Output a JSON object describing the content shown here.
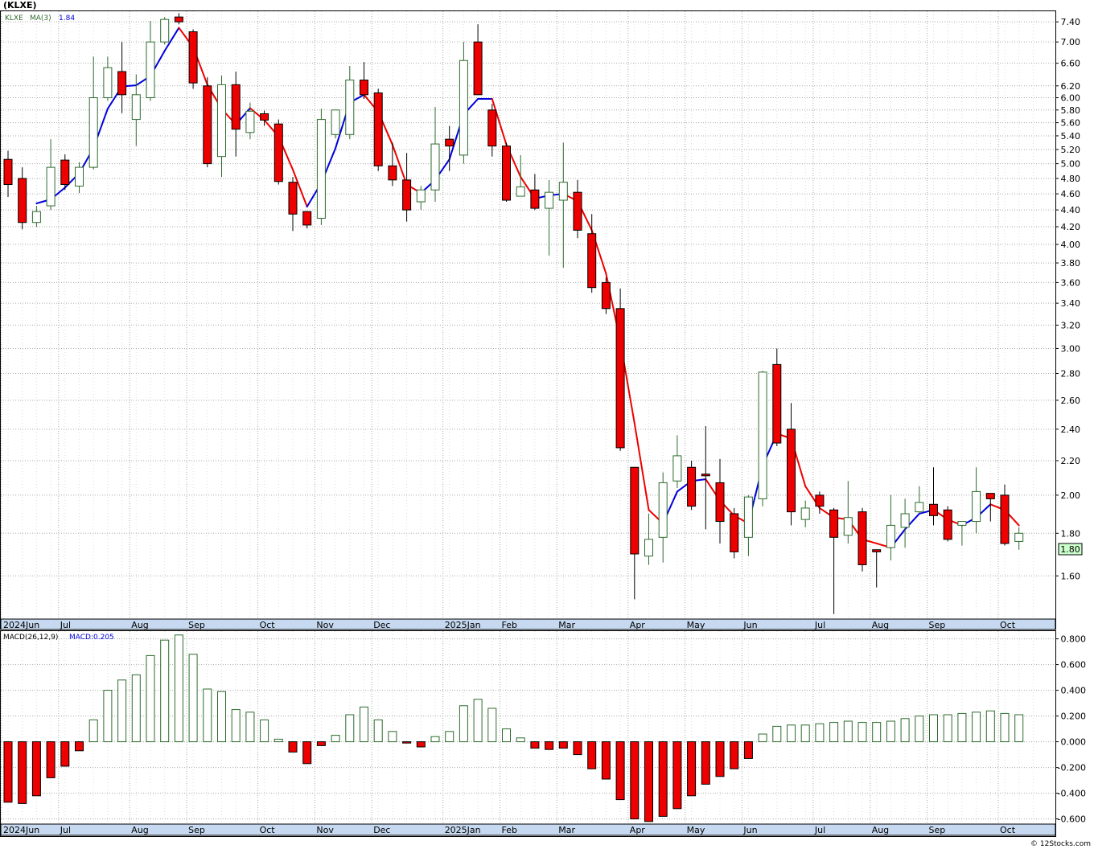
{
  "title": "(KLXE)",
  "copyright": "© 12Stocks.com",
  "colors": {
    "up": "#2e6b2e",
    "down": "#ee0000",
    "ma_up": "#0000dd",
    "ma_down": "#ee0000",
    "grid": "#aaaaaa",
    "axis_band": "#c6d9f0",
    "last_price_bg": "#ccffcc"
  },
  "chart_data": [
    {
      "type": "candlestick",
      "name": "price",
      "legend": {
        "symbol": "KLXE",
        "ma_label": "MA(3)",
        "ma_value": "1.84"
      },
      "scale": "log",
      "ylim": [
        1.42,
        7.62
      ],
      "y_ticks": [
        7.4,
        7.0,
        6.6,
        6.2,
        6.0,
        5.8,
        5.6,
        5.4,
        5.2,
        5.0,
        4.8,
        4.6,
        4.4,
        4.2,
        4.0,
        3.8,
        3.6,
        3.4,
        3.2,
        3.0,
        2.8,
        2.6,
        2.4,
        2.2,
        2.0,
        1.8,
        1.6
      ],
      "y_tick_labels": [
        "7.40",
        "7.00",
        "6.60",
        "6.20",
        "6.00",
        "5.80",
        "5.60",
        "5.40",
        "5.20",
        "5.00",
        "4.80",
        "4.60",
        "4.40",
        "4.20",
        "4.00",
        "3.80",
        "3.60",
        "3.40",
        "3.20",
        "3.00",
        "2.80",
        "2.60",
        "2.40",
        "2.20",
        "2.00",
        "1.80",
        "1.60"
      ],
      "last_price_label": "1.80",
      "x_labels": [
        {
          "label": "2024Jun",
          "index": 0
        },
        {
          "label": "Jul",
          "index": 4
        },
        {
          "label": "Aug",
          "index": 9
        },
        {
          "label": "Sep",
          "index": 13
        },
        {
          "label": "Oct",
          "index": 18
        },
        {
          "label": "Nov",
          "index": 22
        },
        {
          "label": "Dec",
          "index": 26
        },
        {
          "label": "2025Jan",
          "index": 31
        },
        {
          "label": "Feb",
          "index": 35
        },
        {
          "label": "Mar",
          "index": 39
        },
        {
          "label": "Apr",
          "index": 44
        },
        {
          "label": "May",
          "index": 48
        },
        {
          "label": "Jun",
          "index": 52
        },
        {
          "label": "Jul",
          "index": 57
        },
        {
          "label": "Aug",
          "index": 61
        },
        {
          "label": "Sep",
          "index": 65
        },
        {
          "label": "Oct",
          "index": 70
        }
      ],
      "candles": [
        {
          "o": 5.06,
          "h": 5.18,
          "l": 4.56,
          "c": 4.72
        },
        {
          "o": 4.8,
          "h": 4.95,
          "l": 4.17,
          "c": 4.25
        },
        {
          "o": 4.25,
          "h": 4.45,
          "l": 4.2,
          "c": 4.38
        },
        {
          "o": 4.45,
          "h": 5.35,
          "l": 4.4,
          "c": 4.95
        },
        {
          "o": 5.05,
          "h": 5.13,
          "l": 4.65,
          "c": 4.72
        },
        {
          "o": 4.7,
          "h": 5.02,
          "l": 4.61,
          "c": 4.95
        },
        {
          "o": 4.95,
          "h": 6.72,
          "l": 4.92,
          "c": 6.0
        },
        {
          "o": 6.0,
          "h": 6.72,
          "l": 5.95,
          "c": 6.52
        },
        {
          "o": 6.45,
          "h": 7.0,
          "l": 5.75,
          "c": 6.05
        },
        {
          "o": 5.65,
          "h": 6.4,
          "l": 5.25,
          "c": 6.05
        },
        {
          "o": 6.0,
          "h": 7.42,
          "l": 5.95,
          "c": 7.0
        },
        {
          "o": 7.0,
          "h": 7.5,
          "l": 6.95,
          "c": 7.45
        },
        {
          "o": 7.5,
          "h": 7.58,
          "l": 7.35,
          "c": 7.4
        },
        {
          "o": 7.2,
          "h": 7.25,
          "l": 6.15,
          "c": 6.25
        },
        {
          "o": 6.2,
          "h": 6.35,
          "l": 4.95,
          "c": 5.0
        },
        {
          "o": 5.1,
          "h": 6.38,
          "l": 4.82,
          "c": 6.22
        },
        {
          "o": 6.22,
          "h": 6.45,
          "l": 5.1,
          "c": 5.5
        },
        {
          "o": 5.45,
          "h": 5.92,
          "l": 5.35,
          "c": 5.78
        },
        {
          "o": 5.74,
          "h": 5.79,
          "l": 5.55,
          "c": 5.64
        },
        {
          "o": 5.58,
          "h": 5.65,
          "l": 4.72,
          "c": 4.76
        },
        {
          "o": 4.75,
          "h": 4.82,
          "l": 4.15,
          "c": 4.35
        },
        {
          "o": 4.38,
          "h": 4.38,
          "l": 4.18,
          "c": 4.22
        },
        {
          "o": 4.3,
          "h": 5.82,
          "l": 4.22,
          "c": 5.65
        },
        {
          "o": 5.42,
          "h": 5.78,
          "l": 5.36,
          "c": 5.8
        },
        {
          "o": 5.42,
          "h": 6.55,
          "l": 5.35,
          "c": 6.3
        },
        {
          "o": 6.3,
          "h": 6.62,
          "l": 5.98,
          "c": 6.05
        },
        {
          "o": 6.08,
          "h": 6.15,
          "l": 4.9,
          "c": 4.97
        },
        {
          "o": 4.97,
          "h": 5.3,
          "l": 4.7,
          "c": 4.78
        },
        {
          "o": 4.78,
          "h": 5.15,
          "l": 4.26,
          "c": 4.4
        },
        {
          "o": 4.5,
          "h": 4.7,
          "l": 4.4,
          "c": 4.65
        },
        {
          "o": 4.65,
          "h": 5.85,
          "l": 4.5,
          "c": 5.28
        },
        {
          "o": 5.35,
          "h": 5.55,
          "l": 4.9,
          "c": 5.25
        },
        {
          "o": 5.12,
          "h": 7.0,
          "l": 5.0,
          "c": 6.65
        },
        {
          "o": 7.0,
          "h": 7.35,
          "l": 6.1,
          "c": 6.05
        },
        {
          "o": 5.8,
          "h": 5.9,
          "l": 5.1,
          "c": 5.25
        },
        {
          "o": 5.25,
          "h": 5.3,
          "l": 4.5,
          "c": 4.52
        },
        {
          "o": 4.57,
          "h": 5.12,
          "l": 4.57,
          "c": 4.69
        },
        {
          "o": 4.65,
          "h": 4.86,
          "l": 4.4,
          "c": 4.42
        },
        {
          "o": 4.42,
          "h": 4.78,
          "l": 3.88,
          "c": 4.62
        },
        {
          "o": 4.52,
          "h": 5.3,
          "l": 3.75,
          "c": 4.75
        },
        {
          "o": 4.62,
          "h": 4.78,
          "l": 4.07,
          "c": 4.16
        },
        {
          "o": 4.12,
          "h": 4.35,
          "l": 3.5,
          "c": 3.55
        },
        {
          "o": 3.6,
          "h": 3.65,
          "l": 3.3,
          "c": 3.35
        },
        {
          "o": 3.35,
          "h": 3.54,
          "l": 2.26,
          "c": 2.28
        },
        {
          "o": 2.16,
          "h": 2.16,
          "l": 1.5,
          "c": 1.7
        },
        {
          "o": 1.69,
          "h": 1.9,
          "l": 1.65,
          "c": 1.77
        },
        {
          "o": 1.78,
          "h": 2.13,
          "l": 1.66,
          "c": 2.07
        },
        {
          "o": 2.08,
          "h": 2.36,
          "l": 2.04,
          "c": 2.23
        },
        {
          "o": 2.16,
          "h": 2.2,
          "l": 1.92,
          "c": 1.94
        },
        {
          "o": 2.12,
          "h": 2.42,
          "l": 1.82,
          "c": 2.11
        },
        {
          "o": 2.07,
          "h": 2.21,
          "l": 1.75,
          "c": 1.86
        },
        {
          "o": 1.9,
          "h": 1.93,
          "l": 1.68,
          "c": 1.71
        },
        {
          "o": 1.78,
          "h": 2.0,
          "l": 1.69,
          "c": 1.99
        },
        {
          "o": 1.98,
          "h": 2.82,
          "l": 1.94,
          "c": 2.81
        },
        {
          "o": 2.87,
          "h": 3.0,
          "l": 2.29,
          "c": 2.31
        },
        {
          "o": 2.4,
          "h": 2.58,
          "l": 1.84,
          "c": 1.91
        },
        {
          "o": 1.87,
          "h": 1.97,
          "l": 1.83,
          "c": 1.93
        },
        {
          "o": 2.0,
          "h": 2.02,
          "l": 1.9,
          "c": 1.94
        },
        {
          "o": 1.92,
          "h": 1.93,
          "l": 1.44,
          "c": 1.78
        },
        {
          "o": 1.79,
          "h": 2.08,
          "l": 1.75,
          "c": 1.88
        },
        {
          "o": 1.91,
          "h": 1.93,
          "l": 1.62,
          "c": 1.65
        },
        {
          "o": 1.72,
          "h": 1.72,
          "l": 1.55,
          "c": 1.71
        },
        {
          "o": 1.73,
          "h": 2.0,
          "l": 1.67,
          "c": 1.84
        },
        {
          "o": 1.83,
          "h": 1.98,
          "l": 1.73,
          "c": 1.9
        },
        {
          "o": 1.91,
          "h": 2.05,
          "l": 1.9,
          "c": 1.96
        },
        {
          "o": 1.95,
          "h": 2.16,
          "l": 1.84,
          "c": 1.89
        },
        {
          "o": 1.92,
          "h": 1.94,
          "l": 1.76,
          "c": 1.77
        },
        {
          "o": 1.84,
          "h": 1.86,
          "l": 1.74,
          "c": 1.86
        },
        {
          "o": 1.86,
          "h": 2.16,
          "l": 1.8,
          "c": 2.02
        },
        {
          "o": 2.01,
          "h": 2.01,
          "l": 1.86,
          "c": 1.98
        },
        {
          "o": 2.0,
          "h": 2.06,
          "l": 1.74,
          "c": 1.75
        },
        {
          "o": 1.76,
          "h": 1.83,
          "l": 1.72,
          "c": 1.8
        }
      ],
      "ma3": [
        null,
        null,
        4.48,
        4.53,
        4.68,
        4.87,
        5.22,
        5.82,
        6.19,
        6.21,
        6.37,
        6.83,
        7.28,
        6.9,
        6.22,
        5.82,
        5.57,
        5.83,
        5.64,
        5.39,
        4.92,
        4.44,
        4.74,
        5.22,
        5.92,
        6.05,
        5.77,
        5.27,
        4.72,
        4.61,
        4.78,
        5.06,
        5.73,
        5.98,
        5.98,
        5.27,
        4.82,
        4.54,
        4.58,
        4.6,
        4.51,
        4.16,
        3.69,
        3.06,
        2.44,
        1.92,
        1.85,
        2.02,
        2.08,
        2.09,
        1.97,
        1.89,
        1.85,
        2.17,
        2.37,
        2.34,
        2.05,
        1.93,
        1.88,
        1.87,
        1.77,
        1.75,
        1.73,
        1.82,
        1.9,
        1.92,
        1.87,
        1.84,
        1.88,
        1.95,
        1.92,
        1.84
      ]
    },
    {
      "type": "bar",
      "name": "macd",
      "legend": {
        "label": "MACD(26,12,9)",
        "value_label": "MACD:0.205"
      },
      "ylim": [
        -0.64,
        0.86
      ],
      "y_ticks": [
        0.8,
        0.6,
        0.4,
        0.2,
        0.0,
        -0.2,
        -0.4,
        -0.6
      ],
      "y_tick_labels": [
        "0.800",
        "0.600",
        "0.400",
        "0.200",
        "0.000",
        "-0.200",
        "-0.400",
        "-0.600"
      ],
      "values": [
        -0.47,
        -0.48,
        -0.42,
        -0.28,
        -0.19,
        -0.07,
        0.17,
        0.4,
        0.48,
        0.52,
        0.67,
        0.79,
        0.83,
        0.68,
        0.41,
        0.39,
        0.25,
        0.23,
        0.17,
        0.02,
        -0.08,
        -0.17,
        -0.03,
        0.05,
        0.21,
        0.27,
        0.17,
        0.08,
        -0.01,
        -0.04,
        0.04,
        0.08,
        0.28,
        0.33,
        0.26,
        0.1,
        0.03,
        -0.05,
        -0.06,
        -0.05,
        -0.1,
        -0.21,
        -0.29,
        -0.45,
        -0.6,
        -0.62,
        -0.58,
        -0.52,
        -0.42,
        -0.33,
        -0.27,
        -0.21,
        -0.13,
        0.06,
        0.12,
        0.13,
        0.13,
        0.14,
        0.15,
        0.16,
        0.15,
        0.15,
        0.16,
        0.18,
        0.2,
        0.21,
        0.21,
        0.22,
        0.23,
        0.24,
        0.22,
        0.21
      ],
      "x_labels": [
        {
          "label": "2024Jun",
          "index": 0
        },
        {
          "label": "Jul",
          "index": 4
        },
        {
          "label": "Aug",
          "index": 9
        },
        {
          "label": "Sep",
          "index": 13
        },
        {
          "label": "Oct",
          "index": 18
        },
        {
          "label": "Nov",
          "index": 22
        },
        {
          "label": "Dec",
          "index": 26
        },
        {
          "label": "2025Jan",
          "index": 31
        },
        {
          "label": "Feb",
          "index": 35
        },
        {
          "label": "Mar",
          "index": 39
        },
        {
          "label": "Apr",
          "index": 44
        },
        {
          "label": "May",
          "index": 48
        },
        {
          "label": "Jun",
          "index": 52
        },
        {
          "label": "Jul",
          "index": 57
        },
        {
          "label": "Aug",
          "index": 61
        },
        {
          "label": "Sep",
          "index": 65
        },
        {
          "label": "Oct",
          "index": 70
        }
      ]
    }
  ]
}
